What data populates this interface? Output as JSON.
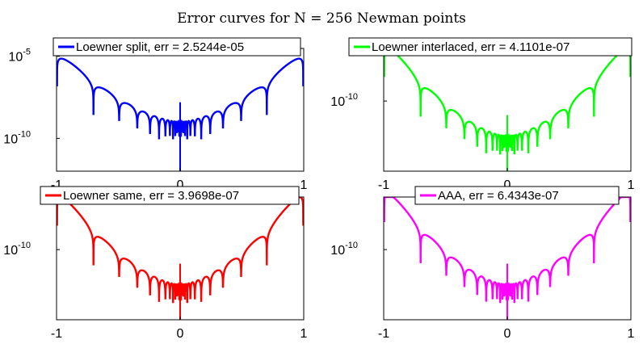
{
  "figure_title": "Error curves for N = 256 Newman points",
  "chart_data": [
    {
      "type": "line",
      "title": "",
      "xlabel": "",
      "ylabel": "",
      "xlim": [
        -1,
        1
      ],
      "ylim": [
        1e-12,
        3e-05
      ],
      "yscale": "log",
      "xticks": [
        "-1",
        "0",
        "1"
      ],
      "yticks": [
        {
          "base": "10",
          "exp": "-5",
          "value": 1e-05
        },
        {
          "base": "10",
          "exp": "-10",
          "value": 1e-10
        }
      ],
      "legend": "top",
      "grid": false,
      "color": "#0000FF",
      "series": [
        {
          "name": "Loewner split, err = 2.5244e-05",
          "envelope_edge": 2.5244e-05,
          "envelope_center": 1e-09,
          "floor": 1e-11
        }
      ]
    },
    {
      "type": "line",
      "title": "",
      "xlabel": "",
      "ylabel": "",
      "xlim": [
        -1,
        1
      ],
      "ylim": [
        1e-14,
        1e-07
      ],
      "yscale": "log",
      "xticks": [
        "-1",
        "0",
        "1"
      ],
      "yticks": [
        {
          "base": "10",
          "exp": "-10",
          "value": 1e-10
        }
      ],
      "legend": "top",
      "grid": false,
      "color": "#00FF00",
      "series": [
        {
          "name": "Loewner interlaced, err = 4.1101e-07",
          "envelope_edge": 4.1101e-07,
          "envelope_center": 1e-12,
          "floor": 2e-14
        }
      ]
    },
    {
      "type": "line",
      "title": "",
      "xlabel": "",
      "ylabel": "",
      "xlim": [
        -1,
        1
      ],
      "ylim": [
        1e-14,
        1e-07
      ],
      "yscale": "log",
      "xticks": [
        "-1",
        "0",
        "1"
      ],
      "yticks": [
        {
          "base": "10",
          "exp": "-10",
          "value": 1e-10
        }
      ],
      "legend": "top",
      "grid": false,
      "color": "#FF0000",
      "series": [
        {
          "name": "Loewner same, err = 3.9698e-07",
          "envelope_edge": 3.9698e-07,
          "envelope_center": 1e-12,
          "floor": 1e-14
        }
      ]
    },
    {
      "type": "line",
      "title": "",
      "xlabel": "",
      "ylabel": "",
      "xlim": [
        -1,
        1
      ],
      "ylim": [
        1e-14,
        1e-07
      ],
      "yscale": "log",
      "xticks": [
        "-1",
        "0",
        "1"
      ],
      "yticks": [
        {
          "base": "10",
          "exp": "-10",
          "value": 1e-10
        }
      ],
      "legend": "top",
      "grid": false,
      "color": "#FF00FF",
      "series": [
        {
          "name": "AAA, err = 6.4343e-07",
          "envelope_edge": 6.4343e-07,
          "envelope_center": 1e-12,
          "floor": 1e-14
        }
      ]
    }
  ]
}
